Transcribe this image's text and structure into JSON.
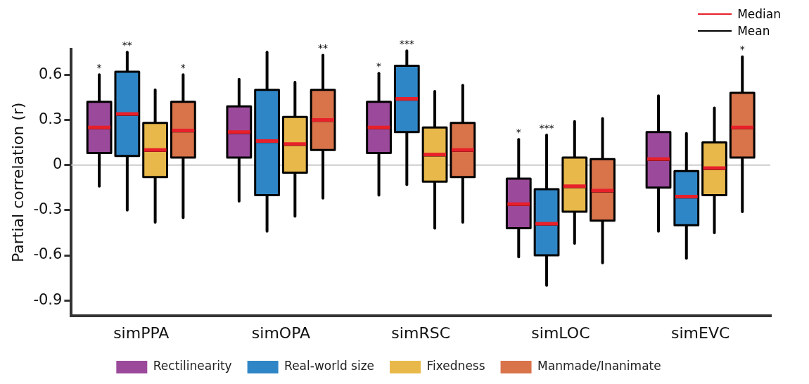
{
  "chart_data": {
    "type": "box",
    "ylabel": "Partial correlation (r)",
    "categories": [
      "simPPA",
      "simOPA",
      "simRSC",
      "simLOC",
      "simEVC"
    ],
    "ylim": [
      -1.0,
      0.77
    ],
    "yticks": [
      -0.9,
      -0.6,
      -0.3,
      0,
      0.3,
      0.6
    ],
    "grid": false,
    "legend": "bottom",
    "ref_lines": [
      {
        "axis": "y",
        "value": 0,
        "color": "#cccccc"
      }
    ],
    "annotations": [
      "Median",
      "Mean"
    ],
    "series": [
      {
        "name": "Rectilinearity",
        "color": "#9b4a9b",
        "value_labels": [
          "*",
          null,
          "*",
          "*",
          null
        ],
        "boxes": [
          {
            "low": -0.14,
            "q1": 0.08,
            "median": 0.25,
            "q3": 0.42,
            "high": 0.6,
            "mean": 0.24
          },
          {
            "low": -0.24,
            "q1": 0.05,
            "median": 0.22,
            "q3": 0.39,
            "high": 0.57,
            "mean": 0.21
          },
          {
            "low": -0.2,
            "q1": 0.08,
            "median": 0.25,
            "q3": 0.42,
            "high": 0.61,
            "mean": 0.24
          },
          {
            "low": -0.61,
            "q1": -0.42,
            "median": -0.26,
            "q3": -0.09,
            "high": 0.17,
            "mean": -0.27
          },
          {
            "low": -0.44,
            "q1": -0.15,
            "median": 0.04,
            "q3": 0.22,
            "high": 0.46,
            "mean": 0.03
          }
        ]
      },
      {
        "name": "Real-world size",
        "color": "#2f86c6",
        "value_labels": [
          "**",
          null,
          "***",
          "***",
          null
        ],
        "boxes": [
          {
            "low": -0.3,
            "q1": 0.06,
            "median": 0.34,
            "q3": 0.62,
            "high": 0.75,
            "mean": 0.33
          },
          {
            "low": -0.44,
            "q1": -0.2,
            "median": 0.16,
            "q3": 0.5,
            "high": 0.75,
            "mean": 0.15
          },
          {
            "low": -0.13,
            "q1": 0.22,
            "median": 0.44,
            "q3": 0.66,
            "high": 0.76,
            "mean": 0.43
          },
          {
            "low": -0.8,
            "q1": -0.6,
            "median": -0.39,
            "q3": -0.16,
            "high": 0.2,
            "mean": -0.4
          },
          {
            "low": -0.62,
            "q1": -0.4,
            "median": -0.21,
            "q3": -0.04,
            "high": 0.21,
            "mean": -0.22
          }
        ]
      },
      {
        "name": "Fixedness",
        "color": "#e8b94a",
        "value_labels": [
          null,
          null,
          null,
          null,
          null
        ],
        "boxes": [
          {
            "low": -0.38,
            "q1": -0.08,
            "median": 0.1,
            "q3": 0.28,
            "high": 0.5,
            "mean": 0.09
          },
          {
            "low": -0.34,
            "q1": -0.05,
            "median": 0.14,
            "q3": 0.32,
            "high": 0.55,
            "mean": 0.13
          },
          {
            "low": -0.42,
            "q1": -0.11,
            "median": 0.07,
            "q3": 0.25,
            "high": 0.49,
            "mean": 0.06
          },
          {
            "low": -0.52,
            "q1": -0.31,
            "median": -0.14,
            "q3": 0.05,
            "high": 0.29,
            "mean": -0.15
          },
          {
            "low": -0.45,
            "q1": -0.2,
            "median": -0.02,
            "q3": 0.15,
            "high": 0.38,
            "mean": -0.03
          }
        ]
      },
      {
        "name": "Manmade/Inanimate",
        "color": "#d9734a",
        "value_labels": [
          "*",
          "**",
          null,
          null,
          "*"
        ],
        "boxes": [
          {
            "low": -0.35,
            "q1": 0.05,
            "median": 0.23,
            "q3": 0.42,
            "high": 0.6,
            "mean": 0.22
          },
          {
            "low": -0.22,
            "q1": 0.1,
            "median": 0.3,
            "q3": 0.5,
            "high": 0.73,
            "mean": 0.29
          },
          {
            "low": -0.38,
            "q1": -0.08,
            "median": 0.1,
            "q3": 0.28,
            "high": 0.53,
            "mean": 0.09
          },
          {
            "low": -0.65,
            "q1": -0.37,
            "median": -0.17,
            "q3": 0.04,
            "high": 0.31,
            "mean": -0.18
          },
          {
            "low": -0.31,
            "q1": 0.05,
            "median": 0.25,
            "q3": 0.48,
            "high": 0.72,
            "mean": 0.24
          }
        ]
      }
    ]
  }
}
